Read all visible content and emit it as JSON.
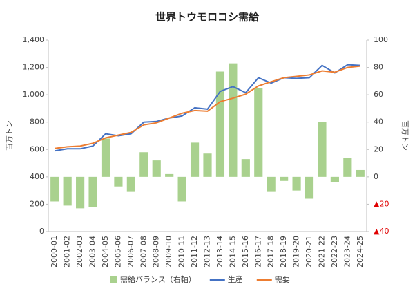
{
  "chart_data": {
    "type": "combo",
    "title": "世界トウモロコシ需給",
    "ylabel": "百万トン",
    "y2label": "百万トン",
    "categories": [
      "2000-01",
      "2001-02",
      "2002-03",
      "2003-04",
      "2004-05",
      "2005-06",
      "2006-07",
      "2007-08",
      "2008-09",
      "2009-10",
      "2010-11",
      "2011-12",
      "2012-13",
      "2013-14",
      "2014-15",
      "2015-16",
      "2016-17",
      "2017-18",
      "2018-19",
      "2019-20",
      "2020-21",
      "2021-22",
      "2022-23",
      "2023-24",
      "2024-25"
    ],
    "series": [
      {
        "name": "需給バランス（右軸）",
        "type": "bar",
        "axis": "y2",
        "color": "#a9d18e",
        "values": [
          -18,
          -21,
          -23,
          -22,
          28,
          -7,
          -11,
          18,
          12,
          2,
          -18,
          25,
          17,
          77,
          83,
          13,
          65,
          -11,
          -3,
          -10,
          -16,
          40,
          -4,
          14,
          5
        ]
      },
      {
        "name": "生産",
        "type": "line",
        "color": "#4472c4",
        "values": [
          590,
          605,
          605,
          625,
          715,
          700,
          715,
          800,
          805,
          830,
          845,
          905,
          895,
          1025,
          1060,
          1015,
          1125,
          1085,
          1125,
          1120,
          1125,
          1215,
          1160,
          1220,
          1215
        ]
      },
      {
        "name": "需要",
        "type": "line",
        "color": "#ed7d31",
        "values": [
          608,
          620,
          625,
          645,
          685,
          705,
          725,
          780,
          795,
          830,
          865,
          885,
          880,
          950,
          975,
          1005,
          1065,
          1095,
          1125,
          1135,
          1145,
          1175,
          1165,
          1200,
          1210
        ]
      }
    ],
    "ylim": [
      0,
      1400
    ],
    "yticks": [
      0,
      200,
      400,
      600,
      800,
      {
        "value": 1000,
        "label": "1,000"
      },
      {
        "value": 1200,
        "label": "1,200"
      },
      {
        "value": 1400,
        "label": "1,400"
      }
    ],
    "y2lim": [
      -40,
      100
    ],
    "y2ticks": [
      {
        "value": -40,
        "label": "▲40"
      },
      {
        "value": -20,
        "label": "▲20"
      },
      0,
      20,
      40,
      60,
      80,
      100
    ],
    "grid": false,
    "legend": "bottom"
  }
}
